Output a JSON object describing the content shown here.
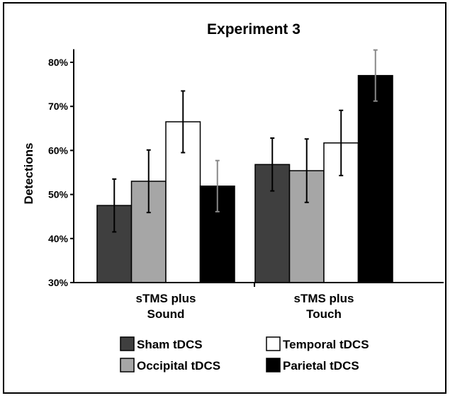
{
  "chart_data": {
    "type": "bar",
    "title": "Experiment 3",
    "xlabel": "",
    "ylabel": "Detections",
    "ylim": [
      30,
      82
    ],
    "yticks": [
      "30%",
      "40%",
      "50%",
      "60%",
      "70%",
      "80%"
    ],
    "ytick_values": [
      30,
      40,
      50,
      60,
      70,
      80
    ],
    "categories": [
      [
        "sTMS plus",
        "Sound"
      ],
      [
        "sTMS plus",
        "Touch"
      ]
    ],
    "series": [
      {
        "name": "Sham tDCS",
        "color": "#3f3f3f",
        "values": [
          47.5,
          56.8
        ],
        "errors": [
          6.0,
          6.0
        ]
      },
      {
        "name": "Occipital tDCS",
        "color": "#a6a6a6",
        "values": [
          53.0,
          55.4
        ],
        "errors": [
          7.1,
          7.2
        ]
      },
      {
        "name": "Temporal tDCS",
        "color": "#ffffff",
        "values": [
          66.5,
          61.7
        ],
        "errors": [
          7.0,
          7.4
        ]
      },
      {
        "name": "Parietal tDCS",
        "color": "#000000",
        "values": [
          51.9,
          77.0
        ],
        "errors": [
          5.8,
          5.8
        ]
      }
    ],
    "grid": false,
    "legend": "bottom"
  }
}
